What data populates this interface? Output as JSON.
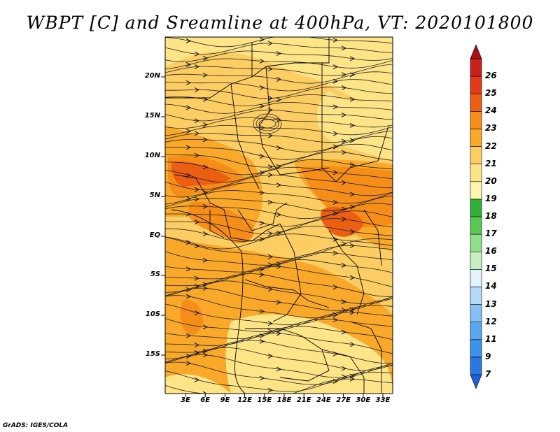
{
  "title": "WBPT [C] and Sreamline at 400hPa, VT: 2020101800",
  "latitude_labels": [
    "20N",
    "15N",
    "10N",
    "5N",
    "EQ",
    "5S",
    "10S",
    "15S"
  ],
  "longitude_labels": [
    "3E",
    "6E",
    "9E",
    "12E",
    "15E",
    "18E",
    "21E",
    "24E",
    "27E",
    "30E",
    "33E"
  ],
  "colorbar": {
    "labels": [
      "7",
      "9",
      "11",
      "12",
      "13",
      "14",
      "15",
      "16",
      "17",
      "18",
      "19",
      "20",
      "21",
      "22",
      "23",
      "24",
      "25",
      "26"
    ],
    "colors": [
      "#1f5fdc",
      "#2a78e4",
      "#3c91ec",
      "#5aa6f0",
      "#86bff4",
      "#b3d8f8",
      "#e4f3fb",
      "#c7f0c0",
      "#8fe08a",
      "#58c853",
      "#32b035",
      "#fdf6b3",
      "#fde487",
      "#fccd62",
      "#f9a829",
      "#f68d18",
      "#ec5f13",
      "#e3381a",
      "#c9201c",
      "#a9111b"
    ]
  },
  "footer": "GrADS: IGES/COLA",
  "map_colors": {
    "base": "#fccd62",
    "light": "#fde487",
    "orange": "#f9a829",
    "dark_orange": "#f68d18",
    "red_orange": "#ec5f13"
  }
}
